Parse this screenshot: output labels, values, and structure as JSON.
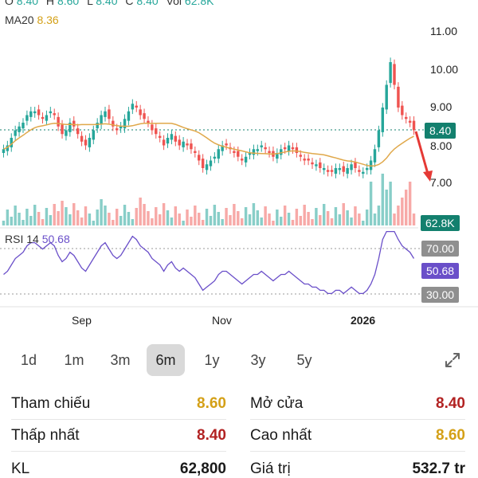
{
  "header": {
    "ohlc": [
      {
        "key": "O",
        "value": "8.40"
      },
      {
        "key": "H",
        "value": "8.60"
      },
      {
        "key": "L",
        "value": "8.40"
      },
      {
        "key": "C",
        "value": "8.40"
      },
      {
        "key": "Vol",
        "value": "62.8K"
      }
    ],
    "ma_label": "MA20",
    "ma_value": "8.36"
  },
  "price_axis": [
    "11.00",
    "10.00",
    "9.00",
    "8.00",
    "7.00"
  ],
  "badges": {
    "last_price": "8.40",
    "last_volume": "62.8K",
    "rsi_upper": "70.00",
    "rsi_current": "50.68",
    "rsi_lower": "30.00"
  },
  "rsi": {
    "label": "RSI 14",
    "value": "50.68"
  },
  "x_axis": [
    {
      "label": "Sep",
      "bold": false
    },
    {
      "label": "Nov",
      "bold": false
    },
    {
      "label": "2026",
      "bold": true
    }
  ],
  "ranges": [
    "1d",
    "1m",
    "3m",
    "6m",
    "1y",
    "3y",
    "5y"
  ],
  "active_range": "6m",
  "stats": {
    "reference": {
      "label": "Tham chiếu",
      "value": "8.60"
    },
    "open": {
      "label": "Mở cửa",
      "value": "8.40"
    },
    "low": {
      "label": "Thấp nhất",
      "value": "8.40"
    },
    "high": {
      "label": "Cao nhất",
      "value": "8.60"
    },
    "volume": {
      "label": "KL",
      "value": "62,800"
    },
    "value": {
      "label": "Giá trị",
      "value": "532.7 tr"
    }
  },
  "colors": {
    "up": "#26a69a",
    "down": "#ef5350",
    "ma": "#e0a84a",
    "rsi": "#6a4fc9",
    "yellow": "#d4a017",
    "red": "#b22222",
    "arrow": "#e53935"
  }
}
